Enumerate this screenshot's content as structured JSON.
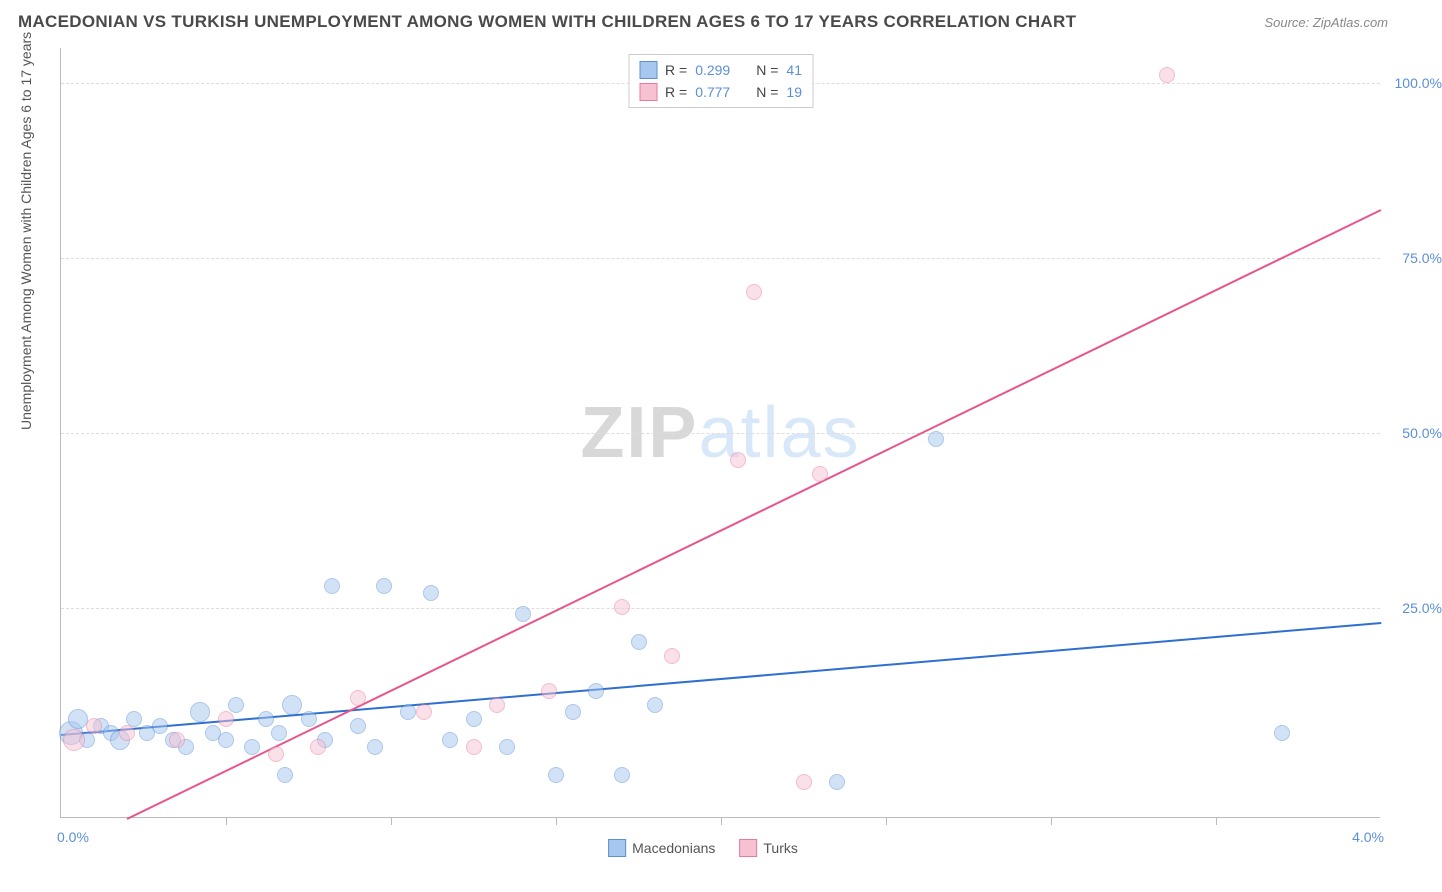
{
  "header": {
    "title": "MACEDONIAN VS TURKISH UNEMPLOYMENT AMONG WOMEN WITH CHILDREN AGES 6 TO 17 YEARS CORRELATION CHART",
    "source": "Source: ZipAtlas.com"
  },
  "watermark": {
    "left": "ZIP",
    "right": "atlas"
  },
  "chart": {
    "type": "scatter",
    "y_axis_label": "Unemployment Among Women with Children Ages 6 to 17 years",
    "xlim": [
      0.0,
      4.0
    ],
    "ylim": [
      -5.0,
      105.0
    ],
    "x_tick_label_left": "0.0%",
    "x_tick_label_right": "4.0%",
    "x_minor_ticks": [
      0.5,
      1.0,
      1.5,
      2.0,
      2.5,
      3.0,
      3.5
    ],
    "y_ticks": [
      25.0,
      50.0,
      75.0,
      100.0
    ],
    "y_tick_labels": [
      "25.0%",
      "50.0%",
      "75.0%",
      "100.0%"
    ],
    "grid_color": "#dddddd",
    "axis_color": "#bbbbbb",
    "tick_label_color": "#5b8fd6",
    "background_color": "#ffffff",
    "point_radius": 8,
    "point_opacity": 0.5,
    "series": [
      {
        "name": "Macedonians",
        "color_fill": "#a7c7ef",
        "color_stroke": "#5b8fd6",
        "r_label": "R =",
        "r_value": "0.299",
        "n_label": "N =",
        "n_value": "41",
        "trend": {
          "x1": 0.0,
          "y1": 7.0,
          "x2": 4.0,
          "y2": 23.0,
          "color": "#2f6fd0",
          "width": 2
        },
        "points": [
          {
            "x": 0.03,
            "y": 7.0,
            "r": 12
          },
          {
            "x": 0.05,
            "y": 9.0,
            "r": 10
          },
          {
            "x": 0.08,
            "y": 6.0,
            "r": 8
          },
          {
            "x": 0.12,
            "y": 8.0,
            "r": 8
          },
          {
            "x": 0.15,
            "y": 7.0,
            "r": 8
          },
          {
            "x": 0.18,
            "y": 6.0,
            "r": 10
          },
          {
            "x": 0.22,
            "y": 9.0,
            "r": 8
          },
          {
            "x": 0.26,
            "y": 7.0,
            "r": 8
          },
          {
            "x": 0.3,
            "y": 8.0,
            "r": 8
          },
          {
            "x": 0.34,
            "y": 6.0,
            "r": 8
          },
          {
            "x": 0.38,
            "y": 5.0,
            "r": 8
          },
          {
            "x": 0.42,
            "y": 10.0,
            "r": 10
          },
          {
            "x": 0.46,
            "y": 7.0,
            "r": 8
          },
          {
            "x": 0.5,
            "y": 6.0,
            "r": 8
          },
          {
            "x": 0.53,
            "y": 11.0,
            "r": 8
          },
          {
            "x": 0.58,
            "y": 5.0,
            "r": 8
          },
          {
            "x": 0.62,
            "y": 9.0,
            "r": 8
          },
          {
            "x": 0.66,
            "y": 7.0,
            "r": 8
          },
          {
            "x": 0.68,
            "y": 1.0,
            "r": 8
          },
          {
            "x": 0.75,
            "y": 9.0,
            "r": 8
          },
          {
            "x": 0.8,
            "y": 6.0,
            "r": 8
          },
          {
            "x": 0.82,
            "y": 28.0,
            "r": 8
          },
          {
            "x": 0.9,
            "y": 8.0,
            "r": 8
          },
          {
            "x": 0.95,
            "y": 5.0,
            "r": 8
          },
          {
            "x": 0.98,
            "y": 28.0,
            "r": 8
          },
          {
            "x": 1.05,
            "y": 10.0,
            "r": 8
          },
          {
            "x": 1.12,
            "y": 27.0,
            "r": 8
          },
          {
            "x": 1.18,
            "y": 6.0,
            "r": 8
          },
          {
            "x": 1.25,
            "y": 9.0,
            "r": 8
          },
          {
            "x": 1.35,
            "y": 5.0,
            "r": 8
          },
          {
            "x": 1.4,
            "y": 24.0,
            "r": 8
          },
          {
            "x": 1.5,
            "y": 1.0,
            "r": 8
          },
          {
            "x": 1.55,
            "y": 10.0,
            "r": 8
          },
          {
            "x": 1.62,
            "y": 13.0,
            "r": 8
          },
          {
            "x": 1.7,
            "y": 1.0,
            "r": 8
          },
          {
            "x": 1.75,
            "y": 20.0,
            "r": 8
          },
          {
            "x": 1.8,
            "y": 11.0,
            "r": 8
          },
          {
            "x": 2.35,
            "y": 0.0,
            "r": 8
          },
          {
            "x": 2.65,
            "y": 49.0,
            "r": 8
          },
          {
            "x": 3.7,
            "y": 7.0,
            "r": 8
          },
          {
            "x": 0.7,
            "y": 11.0,
            "r": 10
          }
        ]
      },
      {
        "name": "Turks",
        "color_fill": "#f6c2d2",
        "color_stroke": "#e67ba0",
        "r_label": "R =",
        "r_value": "0.777",
        "n_label": "N =",
        "n_value": "19",
        "trend": {
          "x1": 0.2,
          "y1": -5.0,
          "x2": 4.0,
          "y2": 82.0,
          "color": "#e7558c",
          "width": 2
        },
        "points": [
          {
            "x": 0.04,
            "y": 6.0,
            "r": 11
          },
          {
            "x": 0.1,
            "y": 8.0,
            "r": 8
          },
          {
            "x": 0.2,
            "y": 7.0,
            "r": 8
          },
          {
            "x": 0.35,
            "y": 6.0,
            "r": 8
          },
          {
            "x": 0.5,
            "y": 9.0,
            "r": 8
          },
          {
            "x": 0.65,
            "y": 4.0,
            "r": 8
          },
          {
            "x": 0.78,
            "y": 5.0,
            "r": 8
          },
          {
            "x": 0.9,
            "y": 12.0,
            "r": 8
          },
          {
            "x": 1.1,
            "y": 10.0,
            "r": 8
          },
          {
            "x": 1.25,
            "y": 5.0,
            "r": 8
          },
          {
            "x": 1.32,
            "y": 11.0,
            "r": 8
          },
          {
            "x": 1.48,
            "y": 13.0,
            "r": 8
          },
          {
            "x": 1.7,
            "y": 25.0,
            "r": 8
          },
          {
            "x": 1.85,
            "y": 18.0,
            "r": 8
          },
          {
            "x": 2.05,
            "y": 46.0,
            "r": 8
          },
          {
            "x": 2.1,
            "y": 70.0,
            "r": 8
          },
          {
            "x": 2.25,
            "y": 0.0,
            "r": 8
          },
          {
            "x": 2.3,
            "y": 44.0,
            "r": 8
          },
          {
            "x": 3.35,
            "y": 101.0,
            "r": 8
          }
        ]
      }
    ]
  },
  "bottom_legend": {
    "items": [
      {
        "label": "Macedonians",
        "fill": "#a7c7ef",
        "stroke": "#5b8fd6"
      },
      {
        "label": "Turks",
        "fill": "#f6c2d2",
        "stroke": "#e67ba0"
      }
    ]
  }
}
